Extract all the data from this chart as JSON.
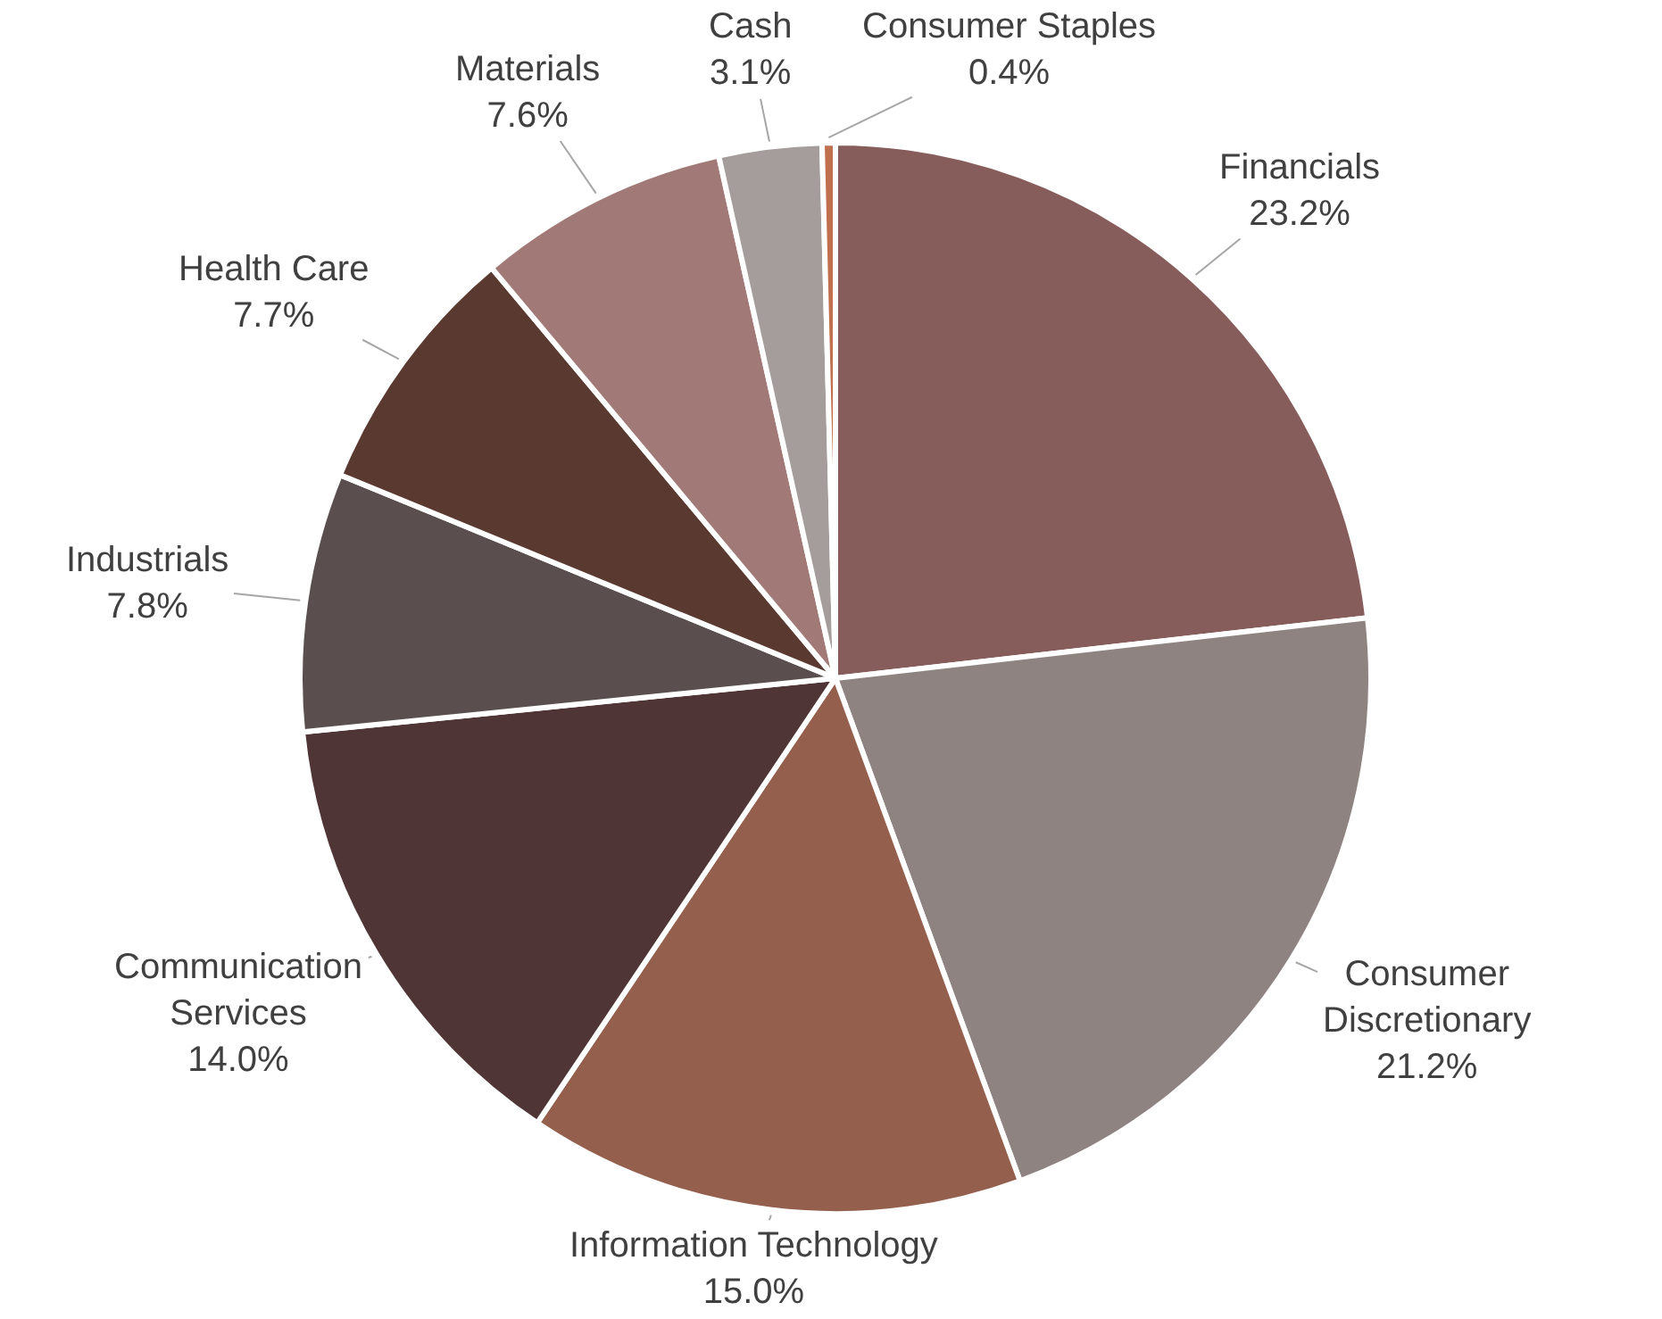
{
  "chart_data": {
    "type": "pie",
    "categories": [
      "Financials",
      "Consumer Discretionary",
      "Information Technology",
      "Communication Services",
      "Industrials",
      "Health Care",
      "Materials",
      "Cash",
      "Consumer Staples"
    ],
    "values": [
      23.2,
      21.2,
      15.0,
      14.0,
      7.8,
      7.7,
      7.6,
      3.1,
      0.4
    ],
    "value_labels": [
      "23.2%",
      "21.2%",
      "15.0%",
      "14.0%",
      "7.8%",
      "7.7%",
      "7.6%",
      "3.1%",
      "0.4%"
    ],
    "colors": [
      "#865d5b",
      "#8f8382",
      "#955f4e",
      "#4f3535",
      "#5a4f4e",
      "#5a3a30",
      "#a17a77",
      "#a59d9c",
      "#c0704f"
    ],
    "legend": false
  }
}
